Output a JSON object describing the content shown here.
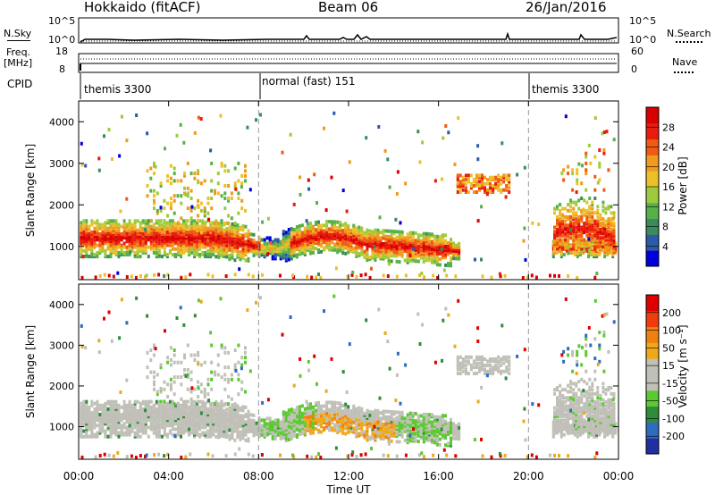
{
  "header": {
    "station": "Hokkaido (fitACF)",
    "beam": "Beam 06",
    "date": "26/Jan/2016"
  },
  "nsky": {
    "left_label": "N.Sky",
    "left_ticks": [
      "10^5",
      "10^0"
    ],
    "right_label": "N.Search",
    "right_ticks": [
      "10^5",
      "10^0"
    ]
  },
  "freq": {
    "left_label_1": "Freq.",
    "left_label_2": "[MHz]",
    "left_ticks": [
      "18",
      "8"
    ],
    "right_label": "Nave",
    "right_ticks": [
      "60",
      "0"
    ]
  },
  "cpid": {
    "label": "CPID",
    "segments": [
      {
        "text": "themis 3300",
        "start_hour": 0,
        "end_hour": 8
      },
      {
        "text": "normal (fast) 151",
        "start_hour": 8,
        "end_hour": 20
      },
      {
        "text": "themis 3300",
        "start_hour": 20,
        "end_hour": 24
      }
    ]
  },
  "chart_data": [
    {
      "type": "heatmap",
      "quantity": "power",
      "ylabel": "Slant Range [km]",
      "xlabel": "",
      "ylim": [
        200,
        4500
      ],
      "yticks": [
        "1000",
        "2000",
        "3000",
        "4000"
      ],
      "colorbar_label": "Power [dB]",
      "colorbar_ticks": [
        "28",
        "24",
        "20",
        "16",
        "12",
        "8",
        "4"
      ],
      "colorbar_colors": [
        "#0000dd",
        "#2a5aa8",
        "#3a8c5c",
        "#58b048",
        "#9ccc3c",
        "#ecc028",
        "#f09a1e",
        "#f05a14",
        "#e81c0c",
        "#d80000"
      ],
      "colorbar_range": [
        0,
        32
      ]
    },
    {
      "type": "heatmap",
      "quantity": "velocity",
      "ylabel": "Slant Range [km]",
      "xlabel": "Time UT",
      "ylim": [
        200,
        4500
      ],
      "yticks": [
        "1000",
        "2000",
        "3000",
        "4000"
      ],
      "xticks": [
        "00:00",
        "04:00",
        "08:00",
        "12:00",
        "16:00",
        "20:00",
        "00:00"
      ],
      "colorbar_label": "Velocity [m s⁻¹]",
      "colorbar_ticks": [
        "200",
        "100",
        "50",
        "15",
        "-15",
        "-50",
        "-100",
        "-200"
      ],
      "colorbar_colors": [
        "#2030a0",
        "#2f6bc0",
        "#2e8c3a",
        "#5cc832",
        "#c0c0b8",
        "#c0c0b8",
        "#f0a818",
        "#f08010",
        "#f03c0c",
        "#e00000"
      ]
    }
  ]
}
